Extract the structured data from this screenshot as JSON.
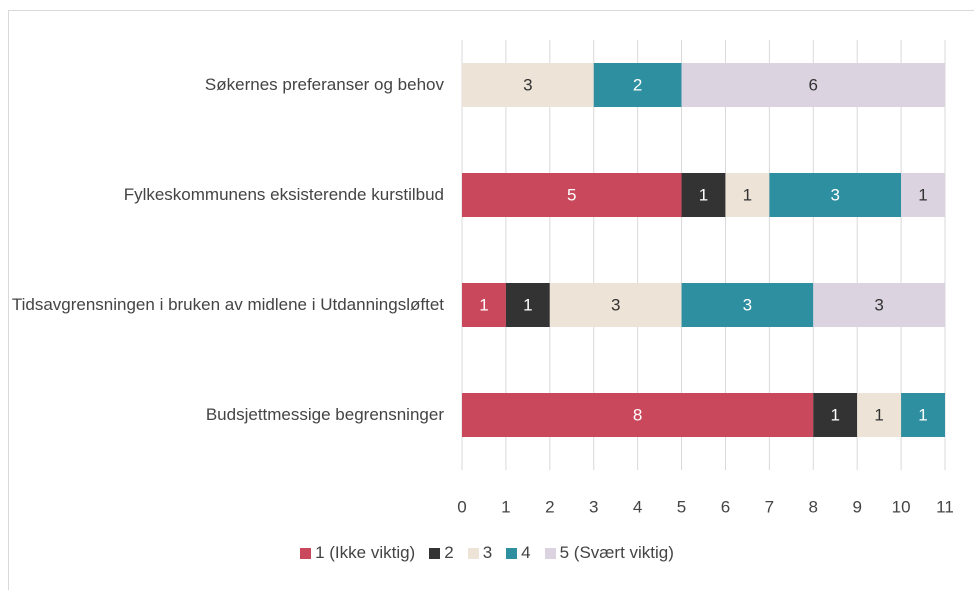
{
  "chart_data": {
    "type": "stacked_barh",
    "categories": [
      "Søkernes preferanser og behov",
      "Fylkeskommunens eksisterende kurstilbud",
      "Tidsavgrensningen i bruken av midlene i Utdanningsløftet",
      "Budsjettmessige begrensninger"
    ],
    "series": [
      {
        "name": "1 (Ikke viktig)",
        "color": "#c9485b",
        "values": [
          0,
          5,
          1,
          8
        ]
      },
      {
        "name": "2",
        "color": "#333333",
        "values": [
          0,
          1,
          1,
          1
        ]
      },
      {
        "name": "3",
        "color": "#ede3d6",
        "values": [
          3,
          1,
          3,
          1
        ]
      },
      {
        "name": "4",
        "color": "#2e8fa0",
        "values": [
          2,
          3,
          3,
          1
        ]
      },
      {
        "name": "5 (Svært viktig)",
        "color": "#dcd3e1",
        "values": [
          6,
          1,
          3,
          0
        ]
      }
    ],
    "xlim": [
      0,
      11
    ],
    "xticks": [
      0,
      1,
      2,
      3,
      4,
      5,
      6,
      7,
      8,
      9,
      10,
      11
    ],
    "grid": true,
    "legend": "bottom"
  }
}
